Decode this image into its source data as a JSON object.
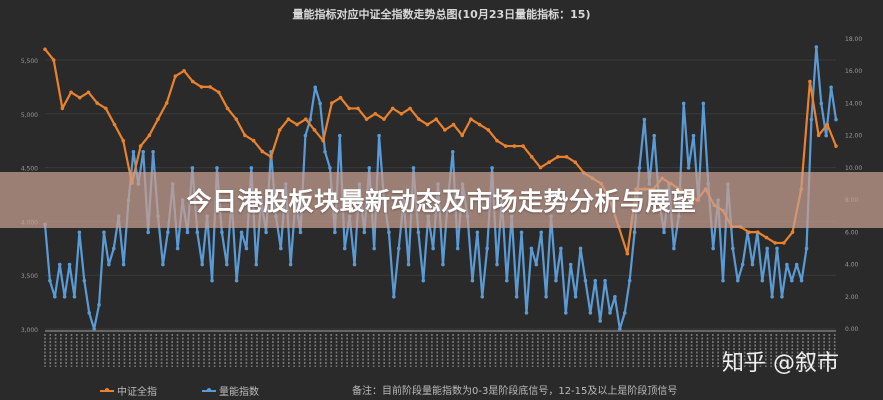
{
  "banner": {
    "headline": "今日港股板块最新动态及市场走势分析与展望"
  },
  "watermark": "知乎 @叙市",
  "chart_data": {
    "type": "line",
    "title": "量能指标对应中证全指数走势总图(10月23日量能指标：15)",
    "note": "备注：目前阶段量能指数为0-3是阶段底信号，12-15及以上是阶段顶信号",
    "left_axis": {
      "ylim": [
        3000,
        5500
      ],
      "ticks": [
        "3,000",
        "3,500",
        "4,000",
        "4,500",
        "5,000",
        "5,500"
      ],
      "tick_values": [
        3000,
        3500,
        4000,
        4500,
        5000,
        5500
      ]
    },
    "right_axis": {
      "ylim": [
        0,
        18
      ],
      "ticks": [
        "0.00",
        "2.00",
        "4.00",
        "6.00",
        "8.00",
        "10.00",
        "12.00",
        "14.00",
        "16.00",
        "18.00"
      ],
      "tick_values": [
        0,
        2,
        4,
        6,
        8,
        10,
        12,
        14,
        16,
        18
      ]
    },
    "grid": true,
    "legend": "bottom-left",
    "series": [
      {
        "name": "中证全指",
        "axis": "left",
        "color": "#e8822e",
        "values": [
          5600,
          5500,
          5050,
          5200,
          5150,
          5200,
          5100,
          5050,
          4900,
          4750,
          4357,
          4700,
          4800,
          4950,
          5100,
          5350,
          5400,
          5300,
          5250,
          5250,
          5200,
          5050,
          4950,
          4800,
          4750,
          4650,
          4600,
          4850,
          4950,
          4900,
          4950,
          4850,
          4750,
          5100,
          5150,
          5050,
          5050,
          4950,
          5000,
          4950,
          5050,
          5000,
          5050,
          4950,
          4900,
          4950,
          4850,
          4900,
          4800,
          4950,
          4900,
          4850,
          4750,
          4700,
          4700,
          4700,
          4600,
          4500,
          4550,
          4600,
          4600,
          4550,
          4450,
          4400,
          4350,
          4200,
          3950,
          3700,
          4300,
          4300,
          4300,
          4400,
          4350,
          4300,
          4250,
          4200,
          4300,
          4150,
          4100,
          3950,
          3950,
          3900,
          3900,
          3850,
          3800,
          3800,
          3900,
          4300,
          5300,
          4800,
          4900,
          4700
        ]
      },
      {
        "name": "量能指数",
        "axis": "right",
        "color": "#5b9bd5",
        "values": [
          6.5,
          3,
          2,
          4,
          2,
          4,
          2,
          6,
          3,
          1,
          0,
          1.5,
          6,
          4,
          5,
          7,
          4,
          8,
          11,
          9,
          11,
          6,
          11,
          7,
          4,
          6,
          9,
          5,
          8,
          6,
          10,
          6,
          4,
          7,
          3,
          10,
          6,
          4,
          8,
          3,
          6,
          5,
          10,
          4,
          8,
          6,
          11,
          7,
          5,
          9,
          4,
          8,
          6,
          12,
          13,
          15,
          14,
          11,
          10,
          6,
          12,
          5,
          7,
          4,
          9,
          6,
          10,
          5,
          12,
          8,
          6,
          2,
          5,
          8,
          4,
          10,
          6,
          3,
          7,
          5,
          9,
          4,
          8,
          11,
          5,
          9,
          7,
          3,
          6,
          2,
          5,
          10,
          4,
          8,
          3,
          7,
          2,
          6,
          1,
          5,
          4,
          6,
          2,
          7,
          3,
          5,
          1,
          4,
          2,
          5,
          3,
          1,
          3,
          0.5,
          3,
          1,
          2,
          0,
          1,
          3,
          6,
          10,
          13,
          9,
          12,
          8,
          6,
          9,
          5,
          7,
          14,
          10,
          12,
          8,
          14,
          9,
          5,
          8,
          3,
          9,
          5,
          3,
          4,
          6,
          4,
          6,
          3,
          5,
          2,
          5,
          2,
          4,
          3,
          4,
          3,
          5,
          13,
          17.5,
          14,
          12,
          15,
          13
        ]
      }
    ]
  }
}
